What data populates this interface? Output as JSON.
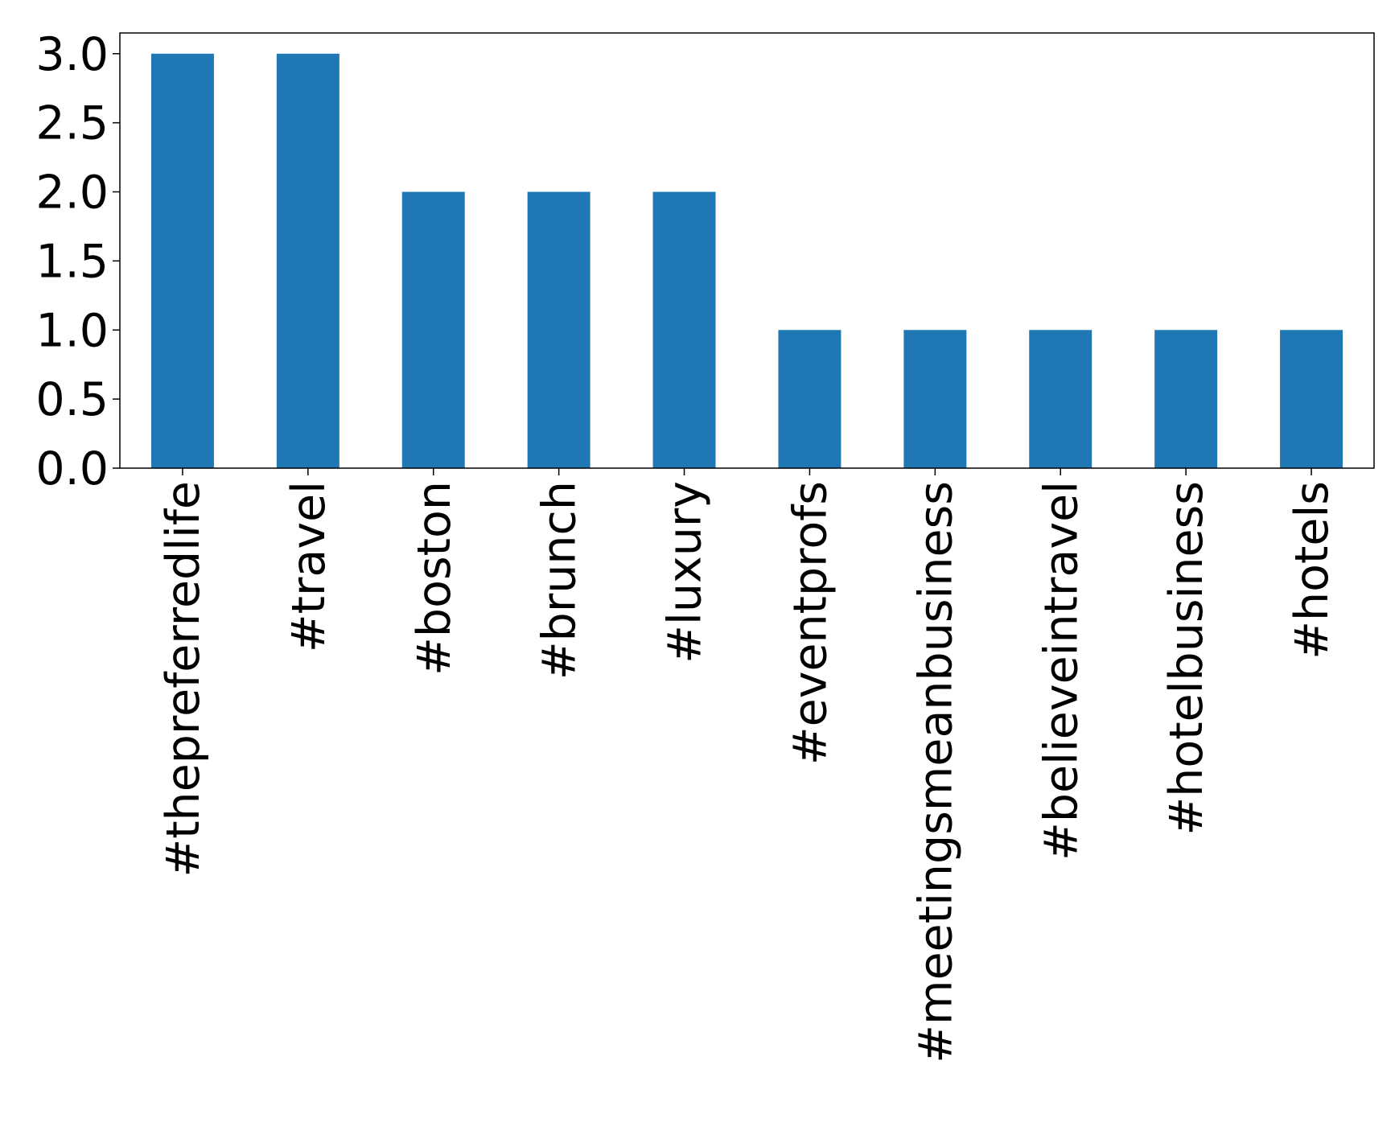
{
  "chart_data": {
    "type": "bar",
    "categories": [
      "#thepreferredlife",
      "#travel",
      "#boston",
      "#brunch",
      "#luxury",
      "#eventprofs",
      "#meetingsmeanbusiness",
      "#believeintravel",
      "#hotelbusiness",
      "#hotels"
    ],
    "values": [
      3,
      3,
      2,
      2,
      2,
      1,
      1,
      1,
      1,
      1
    ],
    "color": "#1f77b4",
    "ylim": [
      0,
      3.15
    ],
    "yticks": [
      {
        "value": 0,
        "label": "0.0"
      },
      {
        "value": 0.5,
        "label": "0.5"
      },
      {
        "value": 1,
        "label": "1.0"
      },
      {
        "value": 1.5,
        "label": "1.5"
      },
      {
        "value": 2,
        "label": "2.0"
      },
      {
        "value": 2.5,
        "label": "2.5"
      },
      {
        "value": 3,
        "label": "3.0"
      }
    ],
    "grid": false
  }
}
